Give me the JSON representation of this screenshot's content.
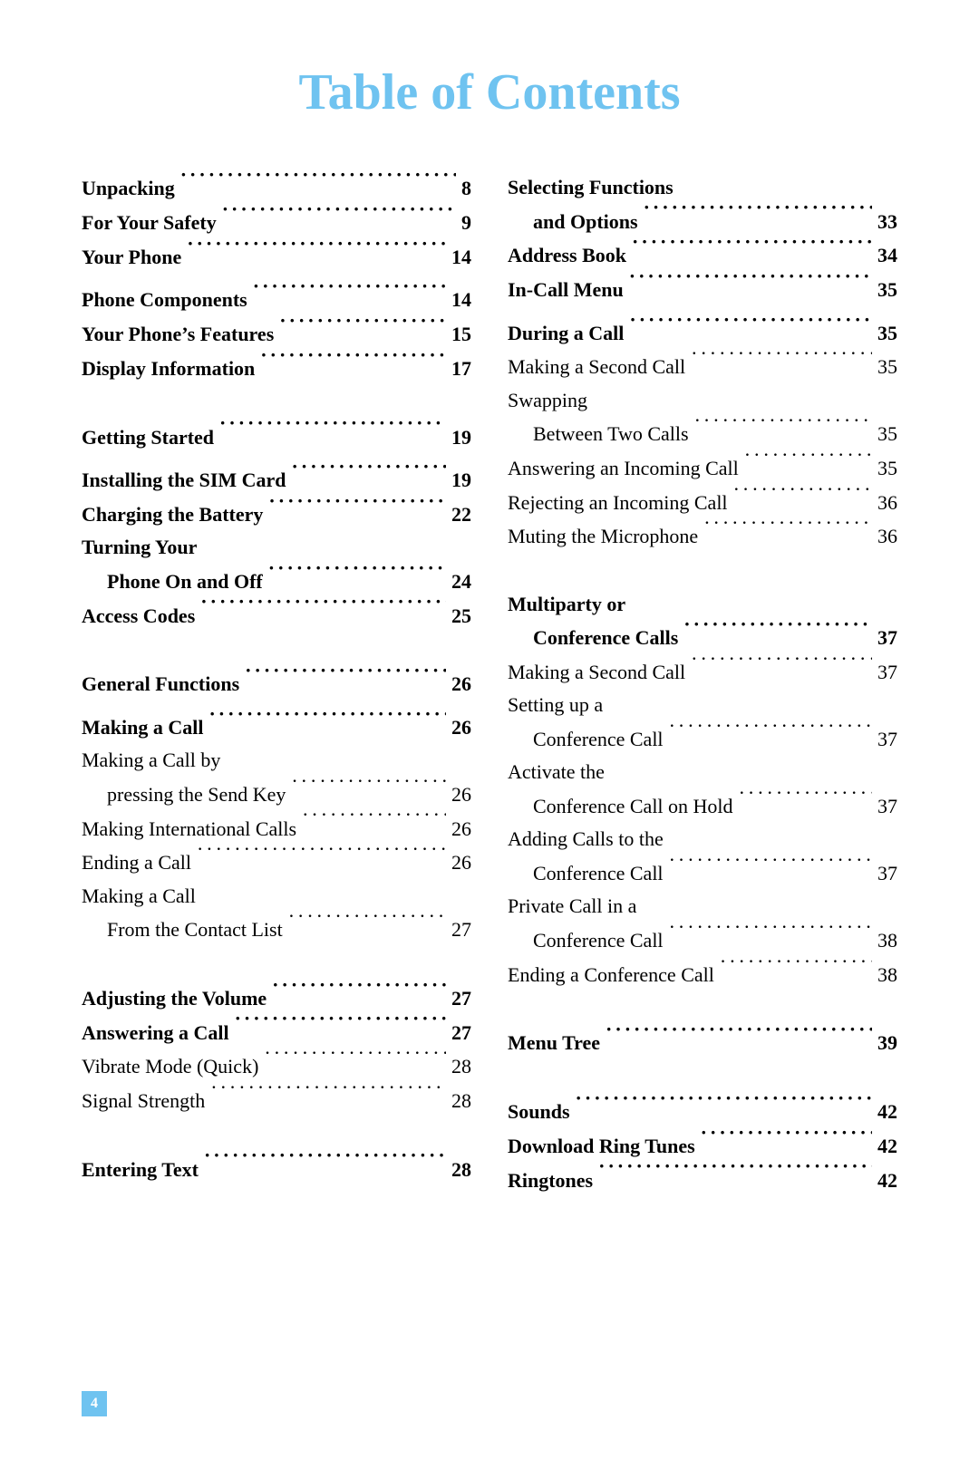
{
  "title": "Table of Contents",
  "title_color": "#6fc3f0",
  "page_number": "4",
  "page_number_bg": "#6fc3f0",
  "page_number_color": "#ffffff",
  "left": {
    "e0": {
      "label": "Unpacking",
      "pg": "8"
    },
    "e1": {
      "label": "For Your Safety",
      "pg": "9"
    },
    "e2": {
      "label": "Your Phone",
      "pg": "14"
    },
    "e3": {
      "label": "Phone Components",
      "pg": "14"
    },
    "e4": {
      "label": "Your Phone’s Features",
      "pg": "15"
    },
    "e5": {
      "label": "Display Information",
      "pg": "17"
    },
    "e6": {
      "label": "Getting Started",
      "pg": "19"
    },
    "e7": {
      "label": "Installing the SIM Card",
      "pg": "19"
    },
    "e8": {
      "label": "Charging the Battery",
      "pg": "22"
    },
    "e9a": {
      "label": "Turning Your"
    },
    "e9b": {
      "label": "Phone On and Off",
      "pg": "24"
    },
    "e10": {
      "label": "Access Codes",
      "pg": "25"
    },
    "e11": {
      "label": "General Functions",
      "pg": "26"
    },
    "e12": {
      "label": "Making a Call",
      "pg": "26"
    },
    "e13a": {
      "label": "Making a Call by"
    },
    "e13b": {
      "label": "pressing the Send Key",
      "pg": "26"
    },
    "e14": {
      "label": "Making International Calls",
      "pg": "26"
    },
    "e15": {
      "label": "Ending a Call",
      "pg": "26"
    },
    "e16a": {
      "label": "Making a Call"
    },
    "e16b": {
      "label": "From the Contact List",
      "pg": "27"
    },
    "e17": {
      "label": "Adjusting the Volume",
      "pg": "27"
    },
    "e18": {
      "label": "Answering a Call",
      "pg": "27"
    },
    "e19": {
      "label": "Vibrate Mode (Quick)",
      "pg": "28"
    },
    "e20": {
      "label": "Signal Strength",
      "pg": "28"
    },
    "e21": {
      "label": "Entering Text",
      "pg": "28"
    }
  },
  "right": {
    "e0a": {
      "label": "Selecting Functions"
    },
    "e0b": {
      "label": "and Options",
      "pg": "33"
    },
    "e1": {
      "label": "Address Book",
      "pg": "34"
    },
    "e2": {
      "label": "In-Call Menu",
      "pg": "35"
    },
    "e3": {
      "label": "During a Call",
      "pg": "35"
    },
    "e4": {
      "label": "Making a Second Call",
      "pg": "35"
    },
    "e5a": {
      "label": "Swapping"
    },
    "e5b": {
      "label": "Between Two Calls",
      "pg": "35"
    },
    "e6": {
      "label": "Answering an Incoming Call",
      "pg": "35"
    },
    "e7": {
      "label": "Rejecting an Incoming Call",
      "pg": "36"
    },
    "e8": {
      "label": "Muting the Microphone",
      "pg": "36"
    },
    "e9a": {
      "label": "Multiparty or"
    },
    "e9b": {
      "label": "Conference Calls",
      "pg": "37"
    },
    "e10": {
      "label": "Making a Second Call",
      "pg": "37"
    },
    "e11a": {
      "label": "Setting up a"
    },
    "e11b": {
      "label": "Conference Call",
      "pg": "37"
    },
    "e12a": {
      "label": "Activate the"
    },
    "e12b": {
      "label": "Conference Call on Hold",
      "pg": "37"
    },
    "e13a": {
      "label": "Adding Calls to the"
    },
    "e13b": {
      "label": "Conference Call",
      "pg": "37"
    },
    "e14a": {
      "label": "Private Call in a"
    },
    "e14b": {
      "label": "Conference Call",
      "pg": "38"
    },
    "e15": {
      "label": "Ending a Conference Call",
      "pg": "38"
    },
    "e16": {
      "label": "Menu Tree",
      "pg": "39"
    },
    "e17": {
      "label": "Sounds",
      "pg": "42"
    },
    "e18": {
      "label": "Download Ring Tunes",
      "pg": "42"
    },
    "e19": {
      "label": "Ringtones",
      "pg": "42"
    }
  }
}
